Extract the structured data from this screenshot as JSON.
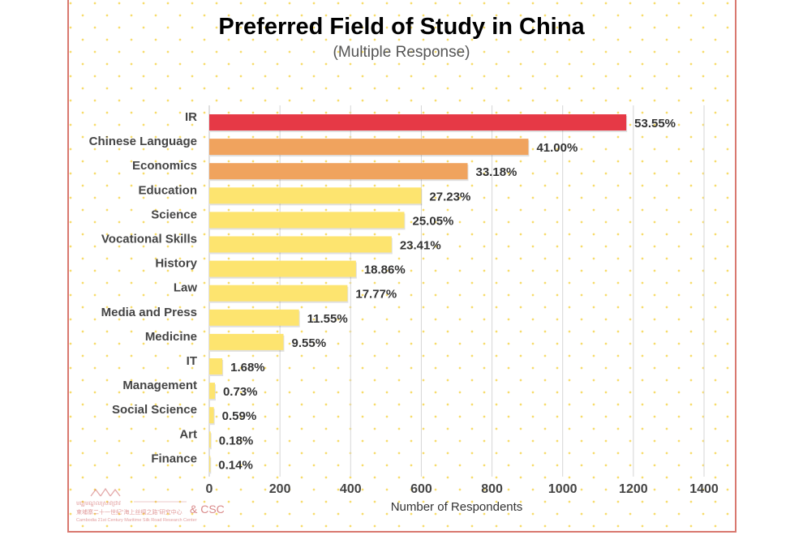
{
  "chart_data": {
    "type": "bar",
    "orientation": "horizontal",
    "title": "Preferred Field of Study in China",
    "subtitle": "(Multiple Response)",
    "xlabel": "Number of Respondents",
    "ylabel": "",
    "xlim": [
      0,
      1400
    ],
    "xticks": [
      "0",
      "200",
      "400",
      "600",
      "800",
      "1000",
      "1200",
      "1400"
    ],
    "grid": "vertical",
    "categories": [
      "IR",
      "Chinese Language",
      "Economics",
      "Education",
      "Science",
      "Vocational Skills",
      "History",
      "Law",
      "Media and Press",
      "Medicine",
      "IT",
      "Management",
      "Social Science",
      "Art",
      "Finance"
    ],
    "values": [
      1180,
      903,
      731,
      600,
      552,
      516,
      415,
      391,
      254,
      210,
      37,
      16,
      13,
      4,
      3
    ],
    "labels": [
      "53.55%",
      "41.00%",
      "33.18%",
      "27.23%",
      "25.05%",
      "23.41%",
      "18.86%",
      "17.77%",
      "11.55%",
      "9.55%",
      "1.68%",
      "0.73%",
      "0.59%",
      "0.18%",
      "0.14%"
    ],
    "colors": [
      "#e63946",
      "#f0a35e",
      "#f0a35e",
      "#fde46f",
      "#fde46f",
      "#fde46f",
      "#fde46f",
      "#fde46f",
      "#fde46f",
      "#fde46f",
      "#fde46f",
      "#fde46f",
      "#fde46f",
      "#fde46f",
      "#fde46f"
    ]
  },
  "logo": {
    "khmer_line": "មជ្ឈមណ្ឌលស្រាវជ្រាវ",
    "chinese_line": "柬埔寨二十一世纪“海上丝绸之路”研究中心",
    "english_line": "Cambodia 21st Century Maritime Silk Road Research Center",
    "suffix": "& CSC"
  }
}
